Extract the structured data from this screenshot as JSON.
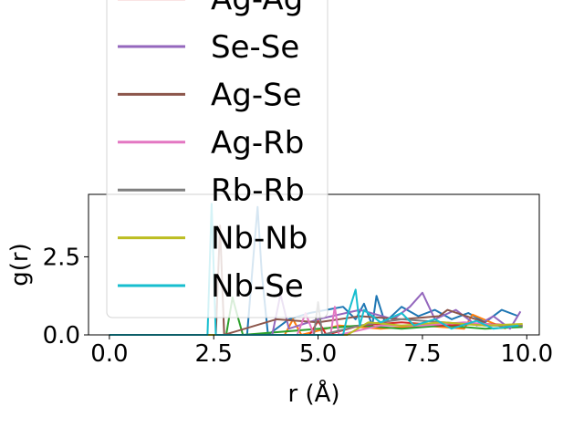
{
  "chart_data": {
    "type": "line",
    "xlabel": "r (Å)",
    "ylabel": "g(r)",
    "xlim": [
      -0.5,
      10.3
    ],
    "ylim": [
      0,
      4.5
    ],
    "xticks": [
      0.0,
      2.5,
      5.0,
      7.5,
      10.0
    ],
    "xtick_labels": [
      "0.0",
      "2.5",
      "5.0",
      "7.5",
      "10.0"
    ],
    "yticks": [
      0.0,
      2.5
    ],
    "ytick_labels": [
      "0.0",
      "2.5"
    ],
    "grid": false,
    "legend_position": "upper-left, extending above the axes",
    "series": [
      {
        "name": "",
        "color": "#1f77b4",
        "x": [
          0,
          3.3,
          3.45,
          3.55,
          3.65,
          3.8,
          4.3,
          4.8,
          5.6,
          5.9,
          6.1,
          6.3,
          6.4,
          6.6,
          7.0,
          7.4,
          7.8,
          8.2,
          8.6,
          9.0,
          9.4,
          9.8
        ],
        "y": [
          0,
          0,
          2.5,
          4.1,
          2.0,
          0,
          0.5,
          0.7,
          0.9,
          0.5,
          1.0,
          0.3,
          1.25,
          0.4,
          0.9,
          0.6,
          0.8,
          0.5,
          0.7,
          0.4,
          0.8,
          0.6
        ]
      },
      {
        "name": "",
        "color": "#ff7f0e",
        "x": [
          0,
          4.2,
          4.4,
          4.6,
          5.5,
          6.5,
          7.5,
          8.5,
          8.7,
          9.5
        ],
        "y": [
          0,
          0,
          0.5,
          0,
          0.3,
          0.2,
          0.3,
          0.2,
          0.65,
          0.2
        ]
      },
      {
        "name": "",
        "color": "#2ca02c",
        "x": [
          0,
          2.8,
          2.95,
          3.05,
          3.2,
          6.0,
          7.0,
          8.0,
          9.0,
          9.9
        ],
        "y": [
          0,
          0,
          1.2,
          0.7,
          0,
          0.3,
          0.2,
          0.3,
          0.2,
          0.25
        ]
      },
      {
        "name": "Ag-Ag",
        "color": "#d62728",
        "x": [
          0,
          4.8,
          5.0,
          5.2,
          6.0,
          7.0,
          8.0,
          9.0,
          9.9
        ],
        "y": [
          0,
          0,
          0.45,
          0,
          0.3,
          0.4,
          0.3,
          0.35,
          0.3
        ]
      },
      {
        "name": "Se-Se",
        "color": "#9467bd",
        "x": [
          0,
          3.9,
          4.1,
          4.3,
          5.0,
          6.0,
          6.8,
          7.2,
          7.5,
          7.8,
          8.3,
          8.8,
          9.2,
          9.6,
          9.85
        ],
        "y": [
          0,
          0,
          1.3,
          0.2,
          0.5,
          0.8,
          0.5,
          0.9,
          1.35,
          0.5,
          0.8,
          0.3,
          0.6,
          0.2,
          0.75
        ]
      },
      {
        "name": "Ag-Se",
        "color": "#8c564b",
        "x": [
          0,
          2.55,
          2.65,
          2.75,
          4.0,
          5.0,
          6.0,
          7.0,
          7.9,
          8.1,
          9.0
        ],
        "y": [
          0,
          0,
          3.5,
          0,
          0.5,
          0.4,
          0.6,
          0.5,
          0.6,
          0.8,
          0.4
        ]
      },
      {
        "name": "Ag-Rb",
        "color": "#e377c2",
        "x": [
          0,
          4.5,
          4.7,
          4.9,
          5.3,
          5.4,
          5.5,
          6.5,
          7.5,
          8.5,
          9.5
        ],
        "y": [
          0,
          0,
          0.7,
          0,
          0,
          0.9,
          0,
          0.3,
          0.3,
          0.4,
          0.3
        ]
      },
      {
        "name": "Rb-Rb",
        "color": "#7f7f7f",
        "x": [
          0,
          4.9,
          5.0,
          5.1,
          6.0,
          7.0,
          8.0,
          9.0,
          9.9
        ],
        "y": [
          0,
          0,
          1.05,
          0,
          0.3,
          0.5,
          0.4,
          0.3,
          0.3
        ]
      },
      {
        "name": "Nb-Nb",
        "color": "#bcbd22",
        "x": [
          0,
          5.7,
          6.2,
          7.0,
          8.0,
          9.0,
          9.9
        ],
        "y": [
          0,
          0,
          0.4,
          0.3,
          0.4,
          0.3,
          0.35
        ]
      },
      {
        "name": "Nb-Se",
        "color": "#17becf",
        "x": [
          0,
          2.35,
          2.45,
          2.55,
          5.6,
          5.7,
          5.9,
          6.0,
          6.1,
          6.5,
          7.0,
          7.3,
          7.8,
          8.2,
          8.8,
          9.2,
          9.8
        ],
        "y": [
          0,
          0,
          4.2,
          0,
          0,
          0.6,
          1.45,
          0.3,
          0.8,
          0.4,
          0.7,
          0.3,
          0.5,
          0.2,
          0.45,
          0.2,
          0.3
        ]
      }
    ]
  }
}
